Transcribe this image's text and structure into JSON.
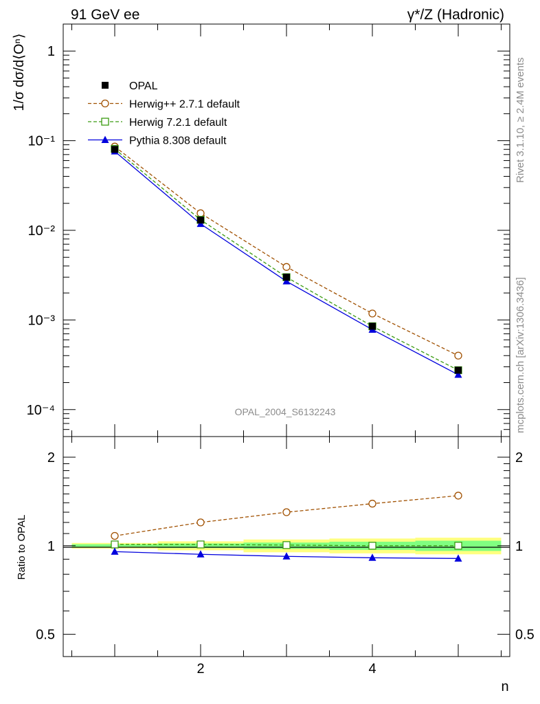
{
  "header": {
    "left": "91 GeV ee",
    "right": "γ*/Z (Hadronic)"
  },
  "side_text": {
    "rivet": "Rivet 3.1.10, ≥ 2.4M events",
    "mcplots": "mcplots.cern.ch [arXiv:1306.3436]"
  },
  "watermark": "OPAL_2004_S6132243",
  "chart_data": [
    {
      "type": "line",
      "ylabel": "1/σ dσ/d⟨Oⁿ⟩",
      "yscale": "log",
      "ylim": [
        5e-05,
        2
      ],
      "xlim": [
        0.4,
        5.6
      ],
      "grid": false,
      "legend_position": "top-left",
      "x": [
        1,
        2,
        3,
        4,
        5
      ],
      "series": [
        {
          "name": "OPAL",
          "color": "#000000",
          "marker": "filled-square",
          "line": "none",
          "values": [
            0.08,
            0.013,
            0.003,
            0.00085,
            0.000275
          ]
        },
        {
          "name": "Herwig++ 2.7.1 default",
          "color": "#a05000",
          "marker": "open-circle",
          "line": "dashed",
          "values": [
            0.086,
            0.0155,
            0.0039,
            0.00118,
            0.0004
          ]
        },
        {
          "name": "Herwig 7.2.1 default",
          "color": "#3a9a10",
          "marker": "open-square",
          "line": "dashed",
          "values": [
            0.081,
            0.0131,
            0.003,
            0.00085,
            0.000275
          ]
        },
        {
          "name": "Pythia 8.308 default",
          "color": "#0000dd",
          "marker": "filled-triangle",
          "line": "solid",
          "values": [
            0.076,
            0.0118,
            0.0027,
            0.00078,
            0.000245
          ]
        }
      ],
      "y_tick_labels": [
        "1",
        "10⁻¹",
        "10⁻²",
        "10⁻³",
        "10⁻⁴"
      ]
    },
    {
      "type": "line",
      "xlabel": "n",
      "ylabel": "Ratio to OPAL",
      "yscale": "log",
      "ylim": [
        0.42,
        2.35
      ],
      "xlim": [
        0.4,
        5.6
      ],
      "x_ticks": [
        2,
        4
      ],
      "y_ticks": [
        0.5,
        1,
        2
      ],
      "x": [
        1,
        2,
        3,
        4,
        5
      ],
      "series": [
        {
          "name": "Herwig++ 2.7.1 default",
          "color": "#a05000",
          "marker": "open-circle",
          "line": "dashed",
          "values": [
            1.08,
            1.2,
            1.3,
            1.39,
            1.48
          ]
        },
        {
          "name": "Herwig 7.2.1 default",
          "color": "#3a9a10",
          "marker": "open-square",
          "line": "dashed",
          "values": [
            1.01,
            1.01,
            1.005,
            1.0,
            1.0
          ]
        },
        {
          "name": "Pythia 8.308 default",
          "color": "#0000dd",
          "marker": "filled-triangle",
          "line": "solid",
          "values": [
            0.955,
            0.935,
            0.92,
            0.91,
            0.905
          ]
        }
      ],
      "uncertainty_band": {
        "x_bins": [
          [
            0.5,
            1.5
          ],
          [
            1.5,
            2.5
          ],
          [
            2.5,
            3.5
          ],
          [
            3.5,
            4.5
          ],
          [
            4.5,
            5.5
          ]
        ],
        "stat_halfwidth": [
          0.012,
          0.018,
          0.025,
          0.032,
          0.04
        ],
        "total_halfwidth": [
          0.022,
          0.035,
          0.05,
          0.058,
          0.065
        ],
        "stat_color": "#80ff80",
        "total_color": "#ffff80"
      }
    }
  ]
}
